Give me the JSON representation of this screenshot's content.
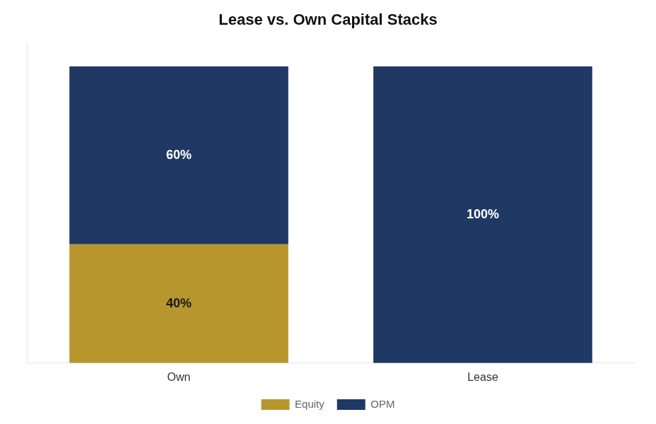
{
  "chart_data": {
    "type": "bar",
    "title": "Lease vs. Own Capital Stacks",
    "categories": [
      "Own",
      "Lease"
    ],
    "stacked": true,
    "series": [
      {
        "name": "Equity",
        "color": "#B8962E",
        "values": [
          40,
          0
        ],
        "value_labels": [
          "40%",
          null
        ]
      },
      {
        "name": "OPM",
        "color": "#1F3864",
        "values": [
          60,
          100
        ],
        "value_labels": [
          "60%",
          "100%"
        ]
      }
    ],
    "ylim": [
      0,
      108
    ],
    "grid": false,
    "legend": "bottom",
    "tick_labels": "x",
    "data_labels": true
  }
}
